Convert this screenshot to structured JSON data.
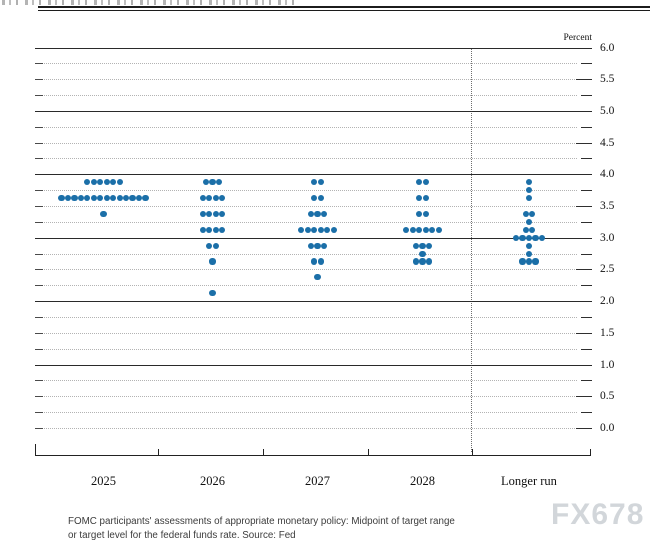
{
  "chart_data": {
    "type": "scatter",
    "subtype": "fomc-dot-plot",
    "title": "",
    "unit_label": "Percent",
    "ylim": [
      0.0,
      6.0
    ],
    "y_tick_labels": [
      "0.0",
      "0.5",
      "1.0",
      "1.5",
      "2.0",
      "2.5",
      "3.0",
      "3.5",
      "4.0",
      "4.5",
      "5.0",
      "5.5",
      "6.0"
    ],
    "gridline_step": 0.25,
    "grid": "solid lines at integers, dotted lines at quarter steps",
    "legend_position": "none",
    "dot_color": "#1b6fa8",
    "categories": [
      "2025",
      "2026",
      "2027",
      "2028",
      "Longer run"
    ],
    "separator_before_category": "Longer run",
    "series": [
      {
        "category": "2025",
        "dots": [
          {
            "rate": 3.875,
            "count": 6
          },
          {
            "rate": 3.625,
            "count": 14
          },
          {
            "rate": 3.375,
            "count": 1
          }
        ]
      },
      {
        "category": "2026",
        "dots": [
          {
            "rate": 3.875,
            "count": 3
          },
          {
            "rate": 3.625,
            "count": 4
          },
          {
            "rate": 3.375,
            "count": 4
          },
          {
            "rate": 3.125,
            "count": 4
          },
          {
            "rate": 2.875,
            "count": 2
          },
          {
            "rate": 2.625,
            "count": 1
          },
          {
            "rate": 2.125,
            "count": 1
          }
        ]
      },
      {
        "category": "2027",
        "dots": [
          {
            "rate": 3.875,
            "count": 2
          },
          {
            "rate": 3.625,
            "count": 2
          },
          {
            "rate": 3.375,
            "count": 3
          },
          {
            "rate": 3.125,
            "count": 6
          },
          {
            "rate": 2.875,
            "count": 3
          },
          {
            "rate": 2.625,
            "count": 2
          },
          {
            "rate": 2.375,
            "count": 1
          }
        ]
      },
      {
        "category": "2028",
        "dots": [
          {
            "rate": 3.875,
            "count": 2
          },
          {
            "rate": 3.625,
            "count": 2
          },
          {
            "rate": 3.375,
            "count": 2
          },
          {
            "rate": 3.125,
            "count": 6
          },
          {
            "rate": 2.875,
            "count": 3
          },
          {
            "rate": 2.75,
            "count": 1
          },
          {
            "rate": 2.625,
            "count": 3
          }
        ]
      },
      {
        "category": "Longer run",
        "dots": [
          {
            "rate": 3.875,
            "count": 1
          },
          {
            "rate": 3.75,
            "count": 1
          },
          {
            "rate": 3.625,
            "count": 1
          },
          {
            "rate": 3.375,
            "count": 2
          },
          {
            "rate": 3.25,
            "count": 1
          },
          {
            "rate": 3.125,
            "count": 2
          },
          {
            "rate": 3.0,
            "count": 5
          },
          {
            "rate": 2.875,
            "count": 1
          },
          {
            "rate": 2.75,
            "count": 1
          },
          {
            "rate": 2.625,
            "count": 3
          }
        ]
      }
    ]
  },
  "caption": {
    "line1": "FOMC participants' assessments of appropriate monetary policy: Midpoint of target range",
    "line2": "or target level for the federal funds rate. Source: Fed"
  },
  "watermark": {
    "text": "FX678"
  }
}
